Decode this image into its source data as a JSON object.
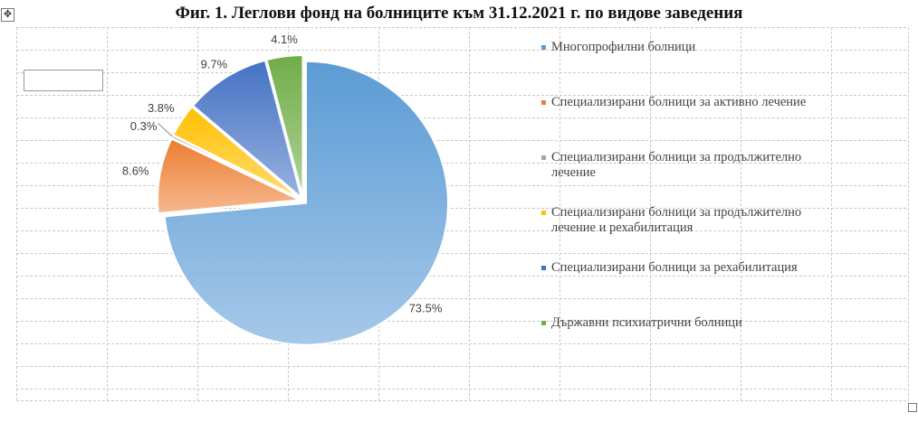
{
  "window": {
    "move_handle_glyph": "✥"
  },
  "chart_data": {
    "type": "pie",
    "title": "Фиг. 1. Леглови фонд на болниците към 31.12.2021 г. по видове заведения",
    "categories": [
      "Многопрофилни болници",
      "Специализирани болници за активно лечение",
      "Специализирани болници за продължително лечение",
      "Специализирани болници за продължително лечение и рехабилитация",
      "Специализирани болници за рехабилитация",
      "Държавни психиатрични болници"
    ],
    "values": [
      73.5,
      8.6,
      0.3,
      3.8,
      9.7,
      4.1
    ],
    "data_labels": [
      "73.5%",
      "8.6%",
      "0.3%",
      "3.8%",
      "9.7%",
      "4.1%"
    ],
    "colors": [
      "#5b9bd5",
      "#ed7d31",
      "#a5a5a5",
      "#ffc000",
      "#4472c4",
      "#70ad47"
    ],
    "legend_position": "right",
    "exploded": true
  }
}
